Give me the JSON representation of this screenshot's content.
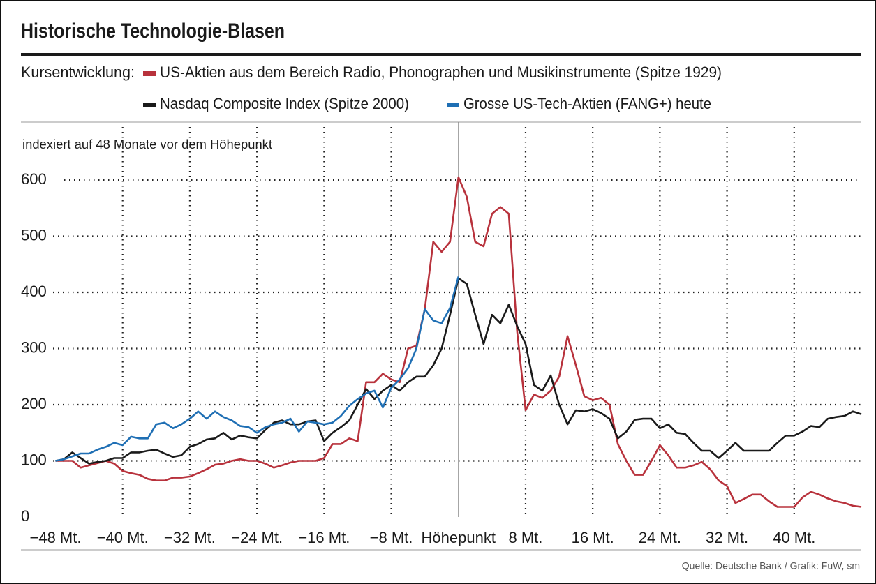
{
  "chart_data": {
    "type": "line",
    "title": "Historische Technologie-Blasen",
    "legend_title": "Kursentwicklung:",
    "ylabel": "indexiert auf 48 Monate vor dem Höhepunkt",
    "source": "Quelle: Deutsche Bank / Grafik: FuW, sm",
    "x": [
      -48,
      -47,
      -46,
      -45,
      -44,
      -43,
      -42,
      -41,
      -40,
      -39,
      -38,
      -37,
      -36,
      -35,
      -34,
      -33,
      -32,
      -31,
      -30,
      -29,
      -28,
      -27,
      -26,
      -25,
      -24,
      -23,
      -22,
      -21,
      -20,
      -19,
      -18,
      -17,
      -16,
      -15,
      -14,
      -13,
      -12,
      -11,
      -10,
      -9,
      -8,
      -7,
      -6,
      -5,
      -4,
      -3,
      -2,
      -1,
      0,
      1,
      2,
      3,
      4,
      5,
      6,
      7,
      8,
      9,
      10,
      11,
      12,
      13,
      14,
      15,
      16,
      17,
      18,
      19,
      20,
      21,
      22,
      23,
      24,
      25,
      26,
      27,
      28,
      29,
      30,
      31,
      32,
      33,
      34,
      35,
      36,
      37,
      38,
      39,
      40,
      41,
      42,
      43,
      44,
      45,
      46,
      47,
      48
    ],
    "series": [
      {
        "name": "US-Aktien aus dem Bereich Radio, Phonographen und Musikinstrumente (Spitze 1929)",
        "color": "#b8323c",
        "values": [
          100,
          100,
          100,
          88,
          92,
          96,
          100,
          95,
          82,
          78,
          75,
          68,
          65,
          65,
          70,
          70,
          72,
          78,
          85,
          93,
          95,
          100,
          103,
          100,
          100,
          95,
          88,
          92,
          97,
          100,
          100,
          100,
          105,
          130,
          130,
          140,
          135,
          240,
          240,
          255,
          245,
          240,
          300,
          305,
          370,
          490,
          472,
          490,
          605,
          570,
          490,
          482,
          540,
          552,
          540,
          330,
          190,
          218,
          212,
          225,
          250,
          322,
          270,
          215,
          208,
          212,
          200,
          130,
          100,
          75,
          75,
          100,
          128,
          110,
          88,
          88,
          92,
          98,
          85,
          65,
          55,
          25,
          32,
          40,
          40,
          28,
          18,
          18,
          18,
          35,
          45,
          40,
          33,
          28,
          25,
          20,
          18
        ]
      },
      {
        "name": "Nasdaq Composite Index (Spitze 2000)",
        "color": "#1a1a1a",
        "values": [
          100,
          103,
          115,
          105,
          95,
          98,
          100,
          105,
          105,
          115,
          115,
          118,
          120,
          113,
          107,
          110,
          125,
          130,
          138,
          140,
          150,
          138,
          145,
          142,
          140,
          155,
          168,
          172,
          165,
          165,
          170,
          172,
          135,
          150,
          160,
          172,
          200,
          228,
          210,
          225,
          235,
          225,
          240,
          250,
          250,
          270,
          300,
          360,
          425,
          415,
          360,
          308,
          360,
          345,
          378,
          340,
          308,
          235,
          225,
          252,
          200,
          165,
          190,
          188,
          192,
          185,
          175,
          140,
          152,
          173,
          175,
          175,
          158,
          165,
          150,
          148,
          132,
          118,
          118,
          105,
          118,
          132,
          118,
          118,
          118,
          118,
          132,
          145,
          145,
          152,
          162,
          160,
          175,
          178,
          180,
          188,
          183
        ]
      },
      {
        "name": "Grosse US-Tech-Aktien (FANG+) heute",
        "color": "#1f6fb4",
        "values": [
          100,
          103,
          108,
          113,
          113,
          120,
          125,
          132,
          128,
          143,
          140,
          140,
          165,
          168,
          158,
          165,
          175,
          188,
          175,
          188,
          178,
          172,
          162,
          160,
          150,
          160,
          165,
          168,
          175,
          152,
          170,
          168,
          165,
          168,
          180,
          198,
          210,
          220,
          225,
          195,
          230,
          245,
          265,
          300,
          370,
          350,
          345,
          372,
          428,
          null,
          null,
          null,
          null,
          null,
          null,
          null,
          null,
          null,
          null,
          null,
          null,
          null,
          null,
          null,
          null,
          null,
          null,
          null,
          null,
          null,
          null,
          null,
          null,
          null,
          null,
          null,
          null,
          null,
          null,
          null,
          null,
          null,
          null,
          null,
          null,
          null,
          null,
          null,
          null,
          null,
          null,
          null,
          null,
          null,
          null,
          null,
          null
        ]
      }
    ],
    "xlim": [
      -48,
      48
    ],
    "xticks": [
      {
        "value": -48,
        "label": "−48 Mt."
      },
      {
        "value": -40,
        "label": "−40 Mt."
      },
      {
        "value": -32,
        "label": "−32 Mt."
      },
      {
        "value": -24,
        "label": "−24 Mt."
      },
      {
        "value": -16,
        "label": "−16 Mt."
      },
      {
        "value": -8,
        "label": "−8 Mt."
      },
      {
        "value": 0,
        "label": "Höhepunkt"
      },
      {
        "value": 8,
        "label": "8 Mt."
      },
      {
        "value": 16,
        "label": "16 Mt."
      },
      {
        "value": 24,
        "label": "24 Mt."
      },
      {
        "value": 32,
        "label": "32 Mt."
      },
      {
        "value": 40,
        "label": "40 Mt."
      }
    ],
    "ylim": [
      0,
      600
    ],
    "yticks": [
      0,
      100,
      200,
      300,
      400,
      500,
      600
    ],
    "grid": true
  }
}
